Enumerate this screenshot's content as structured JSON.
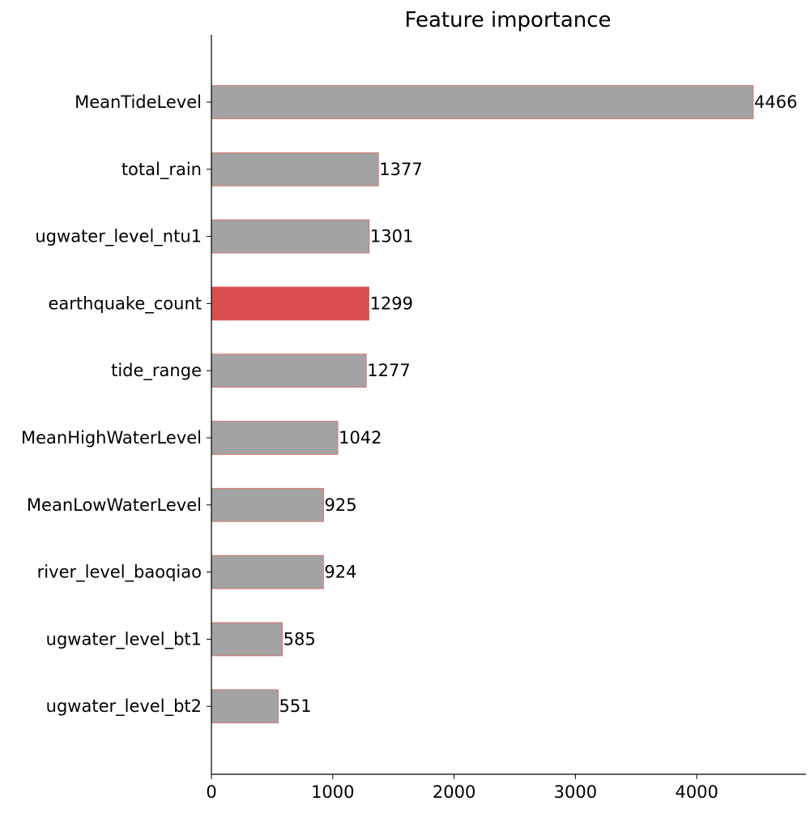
{
  "chart_data": {
    "type": "bar",
    "orientation": "horizontal",
    "title": "Feature importance",
    "xlabel": "",
    "ylabel": "",
    "categories": [
      "MeanTideLevel",
      "total_rain",
      "ugwater_level_ntu1",
      "earthquake_count",
      "tide_range",
      "MeanHighWaterLevel",
      "MeanLowWaterLevel",
      "river_level_baoqiao",
      "ugwater_level_bt1",
      "ugwater_level_bt2"
    ],
    "values": [
      4466,
      1377,
      1301,
      1299,
      1277,
      1042,
      925,
      924,
      585,
      551
    ],
    "highlight_category": "earthquake_count",
    "colors": {
      "bar": "#a3a3a3",
      "bar_edge": "#e06666",
      "highlight": "#d94f4f",
      "axis": "#000000"
    },
    "xlim": [
      0,
      4900
    ],
    "xticks": [
      0,
      1000,
      2000,
      3000,
      4000
    ],
    "grid": false,
    "legend": "none"
  }
}
